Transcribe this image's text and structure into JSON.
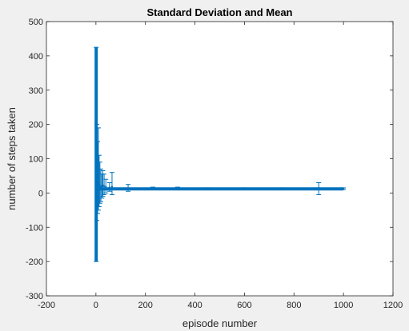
{
  "chart_data": {
    "type": "line",
    "title": "Standard Deviation and Mean",
    "xlabel": "episode number",
    "ylabel": "number of steps taken",
    "xlim": [
      -200,
      1200
    ],
    "ylim": [
      -300,
      500
    ],
    "xticks": [
      -200,
      0,
      200,
      400,
      600,
      800,
      1000,
      1200
    ],
    "yticks": [
      -300,
      -200,
      -100,
      0,
      100,
      200,
      300,
      400,
      500
    ],
    "xtick_labels": [
      "-200",
      "0",
      "200",
      "400",
      "600",
      "800",
      "1000",
      "1200"
    ],
    "ytick_labels": [
      "-300",
      "-200",
      "-100",
      "0",
      "100",
      "200",
      "300",
      "400",
      "500"
    ],
    "grid": false,
    "series": [
      {
        "color": "#0072bd",
        "x": [
          1,
          1000
        ],
        "y": [
          12,
          12
        ],
        "errorbars": [
          {
            "x": 1,
            "y": 110,
            "low": -200,
            "high": 425
          },
          {
            "x": 4,
            "y": 60,
            "low": -80,
            "high": 200
          },
          {
            "x": 7,
            "y": 45,
            "low": -60,
            "high": 150
          },
          {
            "x": 10,
            "y": 30,
            "low": -50,
            "high": 190
          },
          {
            "x": 13,
            "y": 25,
            "low": -40,
            "high": 110
          },
          {
            "x": 16,
            "y": 20,
            "low": -30,
            "high": 90
          },
          {
            "x": 20,
            "y": 18,
            "low": -25,
            "high": 70
          },
          {
            "x": 24,
            "y": 20,
            "low": -15,
            "high": 55
          },
          {
            "x": 28,
            "y": 22,
            "low": -10,
            "high": 65
          },
          {
            "x": 33,
            "y": 20,
            "low": -5,
            "high": 55
          },
          {
            "x": 40,
            "y": 18,
            "low": 0,
            "high": 40
          },
          {
            "x": 55,
            "y": 16,
            "low": 5,
            "high": 30
          },
          {
            "x": 65,
            "y": 18,
            "low": -5,
            "high": 60
          },
          {
            "x": 130,
            "y": 13,
            "low": 5,
            "high": 25
          },
          {
            "x": 230,
            "y": 13,
            "low": 10,
            "high": 17
          },
          {
            "x": 330,
            "y": 13,
            "low": 10,
            "high": 17
          },
          {
            "x": 450,
            "y": 12,
            "low": 10,
            "high": 15
          },
          {
            "x": 600,
            "y": 12,
            "low": 10,
            "high": 15
          },
          {
            "x": 750,
            "y": 12,
            "low": 10,
            "high": 15
          },
          {
            "x": 900,
            "y": 14,
            "low": -5,
            "high": 30
          },
          {
            "x": 1000,
            "y": 12,
            "low": 10,
            "high": 15
          }
        ]
      }
    ]
  }
}
